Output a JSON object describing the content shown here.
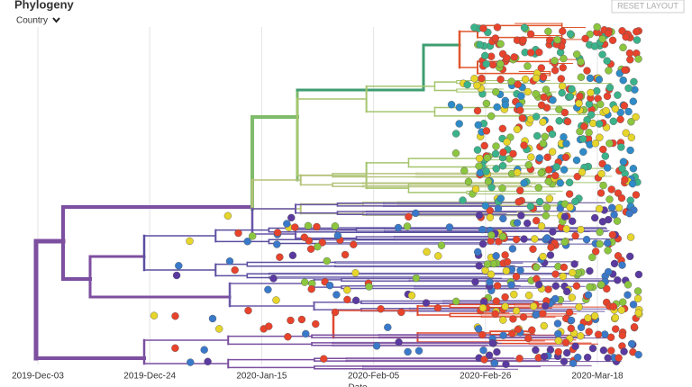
{
  "header": {
    "title": "Phylogeny",
    "dropdown": "Country",
    "button": "RESET LAYOUT"
  },
  "axis": {
    "ticks": [
      "2019-Dec-03",
      "2019-Dec-24",
      "2020-Jan-15",
      "2020-Feb-05",
      "2020-Feb-26",
      "2020-Mar-18"
    ],
    "label": "Date"
  }
}
